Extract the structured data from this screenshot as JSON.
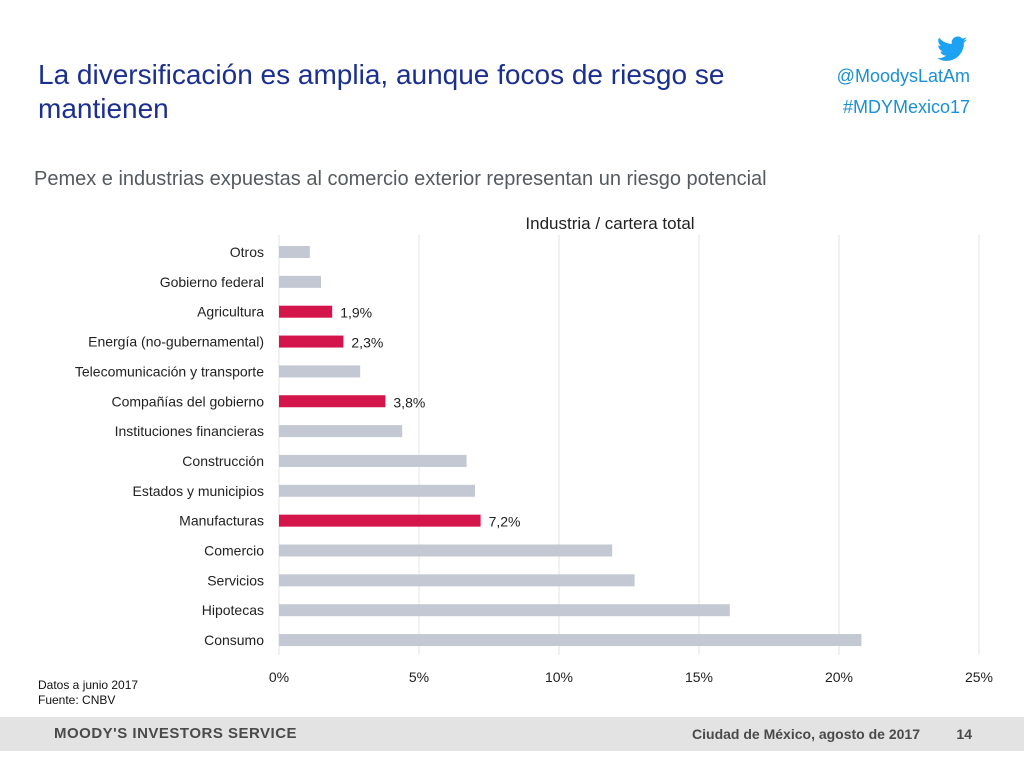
{
  "slide": {
    "title": "La diversificación es amplia, aunque focos de riesgo se mantienen",
    "twitter_handle": "@MoodysLatAm",
    "hashtag": "#MDYMexico17",
    "subtitle": "Pemex e industrias expuestas al comercio exterior representan un riesgo potencial",
    "notes": [
      "Datos a junio 2017",
      "Fuente: CNBV"
    ],
    "footer": {
      "brand": "MOODY'S INVESTORS SERVICE",
      "place_date": "Ciudad de México, agosto de 2017",
      "page": "14"
    }
  },
  "colors": {
    "title": "#1b2f8f",
    "twitter": "#1da1f2",
    "highlight": "#d4154b",
    "bar": "#c4c8d2",
    "grid": "#e3e3e3"
  },
  "icons": [
    "twitter-bird-icon"
  ],
  "chart_data": {
    "type": "bar",
    "orientation": "horizontal",
    "title": "Industria / cartera total",
    "xlabel": "",
    "ylabel": "",
    "xlim": [
      0,
      25
    ],
    "x_ticks": [
      "0%",
      "5%",
      "10%",
      "15%",
      "20%",
      "25%"
    ],
    "grid": "vertical",
    "categories": [
      "Otros",
      "Gobierno federal",
      "Agricultura",
      "Energía (no-gubernamental)",
      "Telecomunicación y transporte",
      "Compañías del gobierno",
      "Instituciones financieras",
      "Construcción",
      "Estados y municipios",
      "Manufacturas",
      "Comercio",
      "Servicios",
      "Hipotecas",
      "Consumo"
    ],
    "values": [
      1.1,
      1.5,
      1.9,
      2.3,
      2.9,
      3.8,
      4.4,
      6.7,
      7.0,
      7.2,
      11.9,
      12.7,
      16.1,
      20.8
    ],
    "highlighted": [
      false,
      false,
      true,
      true,
      false,
      true,
      false,
      false,
      false,
      true,
      false,
      false,
      false,
      false
    ],
    "data_labels": [
      "",
      "",
      "1,9%",
      "2,3%",
      "",
      "3,8%",
      "",
      "",
      "",
      "7,2%",
      "",
      "",
      "",
      ""
    ]
  }
}
